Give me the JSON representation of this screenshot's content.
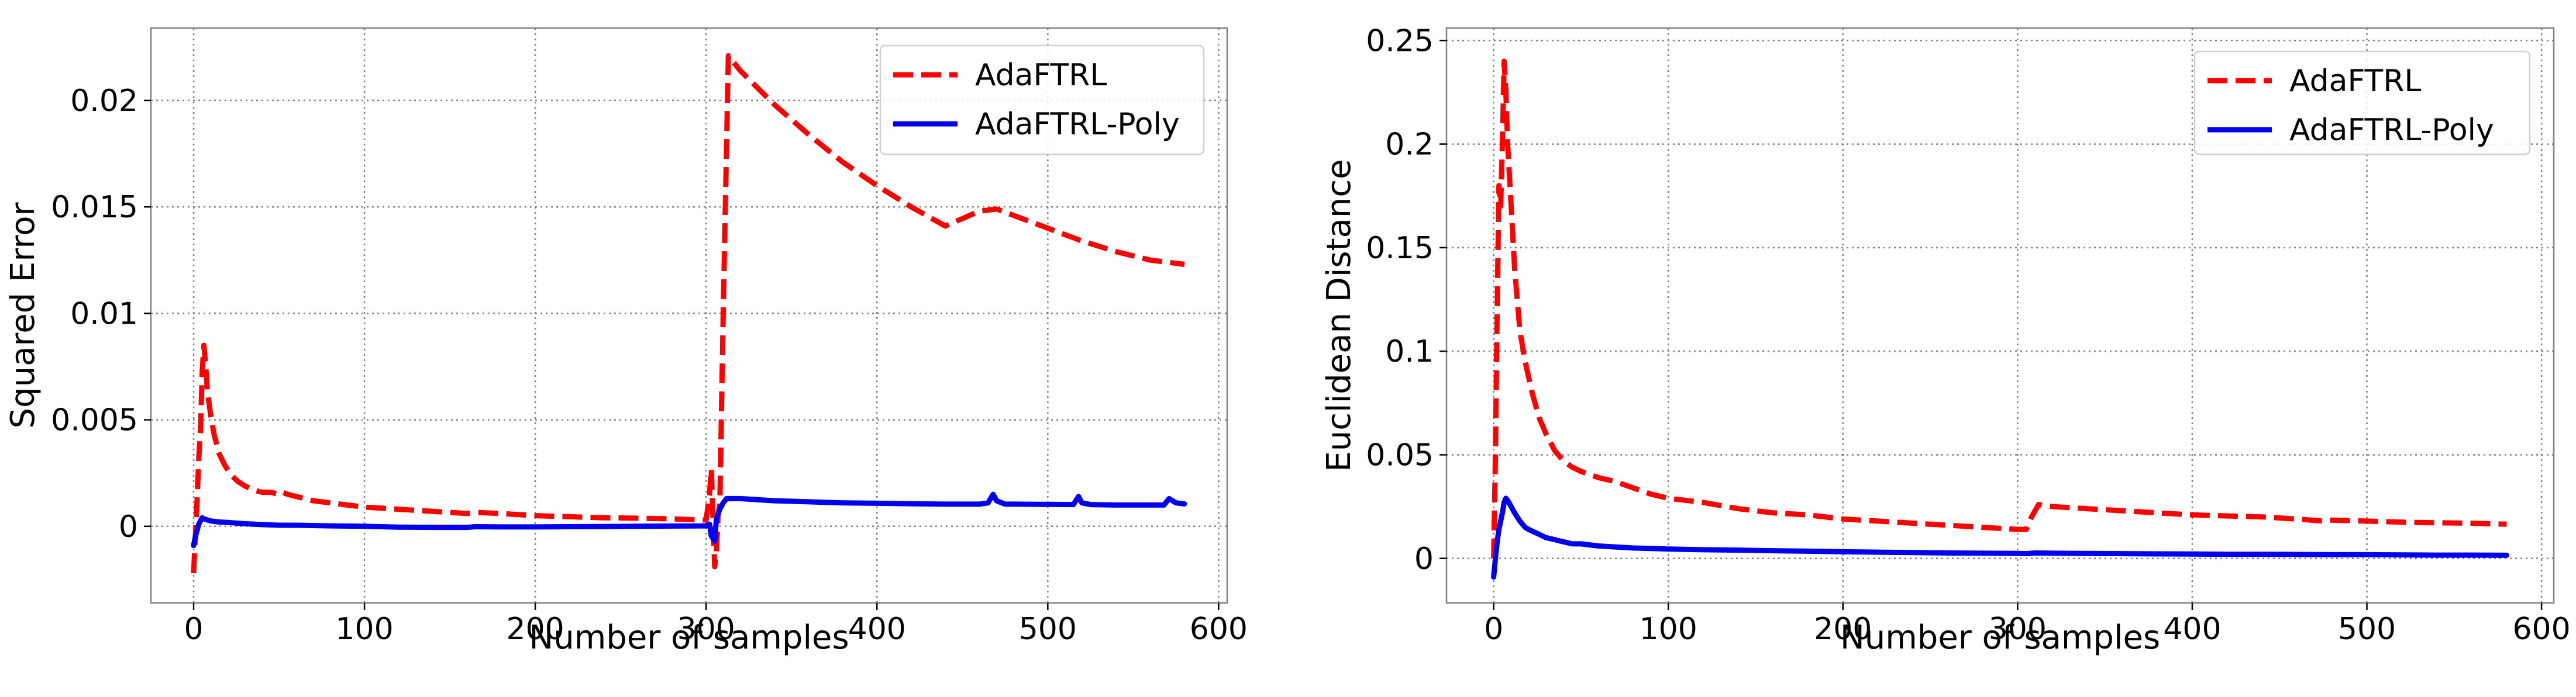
{
  "colors": {
    "adaftrl": "#ff0000",
    "adaftrl_poly": "#0000ee"
  },
  "chart_data": [
    {
      "type": "line",
      "title": "",
      "xlabel": "Number of samples",
      "ylabel": "Squared Error",
      "xlim": [
        -25,
        605
      ],
      "ylim": [
        -0.0036,
        0.0234
      ],
      "xticks": [
        0,
        100,
        200,
        300,
        400,
        500,
        600
      ],
      "xtick_labels": [
        "0",
        "100",
        "200",
        "300",
        "400",
        "500",
        "600"
      ],
      "yticks": [
        0,
        0.005,
        0.01,
        0.015,
        0.02
      ],
      "ytick_labels": [
        "0",
        "0.005",
        "0.01",
        "0.015",
        "0.02"
      ],
      "grid": true,
      "legend_position": "top-right",
      "series": [
        {
          "name": "AdaFTRL",
          "style": "dashed",
          "color_key": "adaftrl",
          "x": [
            0,
            1,
            2,
            3,
            4,
            5,
            6,
            7,
            8,
            10,
            12,
            15,
            18,
            22,
            26,
            30,
            35,
            40,
            45,
            50,
            52,
            55,
            60,
            70,
            80,
            90,
            100,
            120,
            140,
            160,
            165,
            180,
            200,
            220,
            240,
            260,
            280,
            295,
            300,
            302,
            303,
            305,
            306,
            307,
            308,
            310,
            313,
            320,
            340,
            360,
            380,
            400,
            420,
            440,
            460,
            470,
            480,
            500,
            520,
            540,
            560,
            580
          ],
          "y": [
            -0.0022,
            -0.0005,
            0.0012,
            0.0032,
            0.0045,
            0.0072,
            0.0085,
            0.0076,
            0.0064,
            0.0052,
            0.0043,
            0.0034,
            0.0029,
            0.0024,
            0.0021,
            0.0019,
            0.0017,
            0.0016,
            0.0016,
            0.0015,
            0.0016,
            0.0015,
            0.0014,
            0.0012,
            0.0011,
            0.001,
            0.0009,
            0.0008,
            0.0007,
            0.0006,
            0.00065,
            0.0006,
            0.0005,
            0.00045,
            0.0004,
            0.00038,
            0.00035,
            0.0003,
            0.0003,
            0.0015,
            0.0027,
            -0.0019,
            -0.0012,
            0.0005,
            0.001,
            0.01,
            0.0221,
            0.0214,
            0.0198,
            0.0184,
            0.0171,
            0.016,
            0.015,
            0.0141,
            0.0148,
            0.0149,
            0.0146,
            0.014,
            0.0134,
            0.0129,
            0.0125,
            0.0123
          ]
        },
        {
          "name": "AdaFTRL-Poly",
          "style": "solid",
          "color_key": "adaftrl_poly",
          "x": [
            0,
            1,
            2,
            3,
            4,
            5,
            6,
            8,
            10,
            15,
            20,
            30,
            40,
            50,
            60,
            80,
            100,
            120,
            140,
            160,
            165,
            180,
            200,
            220,
            240,
            260,
            280,
            300,
            302,
            303,
            305,
            306,
            307,
            308,
            310,
            312,
            320,
            340,
            360,
            380,
            400,
            420,
            440,
            460,
            465,
            468,
            470,
            475,
            480,
            500,
            515,
            518,
            520,
            525,
            540,
            560,
            568,
            571,
            575,
            580
          ],
          "y": [
            -0.0009,
            -0.0005,
            -0.0002,
            0.0001,
            0.00025,
            0.0004,
            0.00035,
            0.0003,
            0.00025,
            0.0002,
            0.00018,
            0.00012,
            8e-05,
            5e-05,
            5e-05,
            2e-05,
            0.0,
            -4e-05,
            -5e-05,
            -5e-05,
            -2e-05,
            -3e-05,
            -3e-05,
            -2e-05,
            -1e-05,
            0.0,
            1e-05,
            2e-05,
            0.0001,
            -0.00045,
            -0.0007,
            0.0003,
            0.0006,
            0.0008,
            0.0011,
            0.0013,
            0.0013,
            0.0012,
            0.00115,
            0.0011,
            0.00108,
            0.00106,
            0.00104,
            0.00104,
            0.0011,
            0.0015,
            0.0012,
            0.00104,
            0.00104,
            0.00103,
            0.00102,
            0.0014,
            0.0011,
            0.00102,
            0.001,
            0.001,
            0.001,
            0.0013,
            0.0011,
            0.00105
          ]
        }
      ]
    },
    {
      "type": "line",
      "title": "",
      "xlabel": "Number of samples",
      "ylabel": "Euclidean Distance",
      "xlim": [
        -27,
        607
      ],
      "ylim": [
        -0.0215,
        0.256
      ],
      "xticks": [
        0,
        100,
        200,
        300,
        400,
        500,
        600
      ],
      "xtick_labels": [
        "0",
        "100",
        "200",
        "300",
        "400",
        "500",
        "600"
      ],
      "yticks": [
        0,
        0.05,
        0.1,
        0.15,
        0.2,
        0.25
      ],
      "ytick_labels": [
        "0",
        "0.05",
        "0.1",
        "0.15",
        "0.2",
        "0.25"
      ],
      "grid": true,
      "legend_position": "top-right",
      "series": [
        {
          "name": "AdaFTRL",
          "style": "dashed",
          "color_key": "adaftrl",
          "x": [
            0,
            1,
            2,
            3,
            4,
            5,
            6,
            7,
            8,
            10,
            12,
            15,
            18,
            22,
            26,
            30,
            35,
            40,
            45,
            50,
            60,
            70,
            80,
            90,
            100,
            120,
            140,
            160,
            180,
            200,
            220,
            240,
            260,
            280,
            300,
            305,
            308,
            312,
            320,
            340,
            360,
            380,
            400,
            420,
            440,
            460,
            475,
            480,
            500,
            520,
            540,
            560,
            580
          ],
          "y": [
            0.0,
            0.05,
            0.12,
            0.18,
            0.17,
            0.2,
            0.24,
            0.225,
            0.2,
            0.17,
            0.14,
            0.11,
            0.095,
            0.08,
            0.068,
            0.06,
            0.052,
            0.047,
            0.044,
            0.042,
            0.039,
            0.037,
            0.034,
            0.031,
            0.029,
            0.027,
            0.024,
            0.022,
            0.021,
            0.019,
            0.018,
            0.017,
            0.016,
            0.015,
            0.014,
            0.014,
            0.02,
            0.026,
            0.025,
            0.024,
            0.023,
            0.022,
            0.021,
            0.0205,
            0.02,
            0.019,
            0.018,
            0.0185,
            0.018,
            0.0175,
            0.0172,
            0.017,
            0.0165
          ]
        },
        {
          "name": "AdaFTRL-Poly",
          "style": "solid",
          "color_key": "adaftrl_poly",
          "x": [
            0,
            1,
            2,
            3,
            4,
            5,
            6,
            7,
            8,
            10,
            12,
            15,
            18,
            20,
            25,
            30,
            35,
            40,
            45,
            50,
            60,
            70,
            80,
            90,
            100,
            120,
            140,
            160,
            180,
            200,
            220,
            240,
            260,
            280,
            300,
            305,
            310,
            320,
            340,
            360,
            380,
            400,
            420,
            440,
            460,
            480,
            500,
            520,
            540,
            560,
            580
          ],
          "y": [
            -0.009,
            0.0,
            0.008,
            0.014,
            0.018,
            0.022,
            0.027,
            0.029,
            0.028,
            0.025,
            0.022,
            0.018,
            0.015,
            0.014,
            0.012,
            0.01,
            0.009,
            0.008,
            0.007,
            0.007,
            0.006,
            0.0055,
            0.005,
            0.0048,
            0.0045,
            0.0042,
            0.004,
            0.0037,
            0.0035,
            0.0032,
            0.003,
            0.0028,
            0.0026,
            0.0025,
            0.0024,
            0.0023,
            0.0026,
            0.0025,
            0.0024,
            0.0023,
            0.0022,
            0.0021,
            0.002,
            0.002,
            0.0019,
            0.0018,
            0.0018,
            0.0017,
            0.0016,
            0.0016,
            0.0015
          ]
        }
      ]
    }
  ]
}
